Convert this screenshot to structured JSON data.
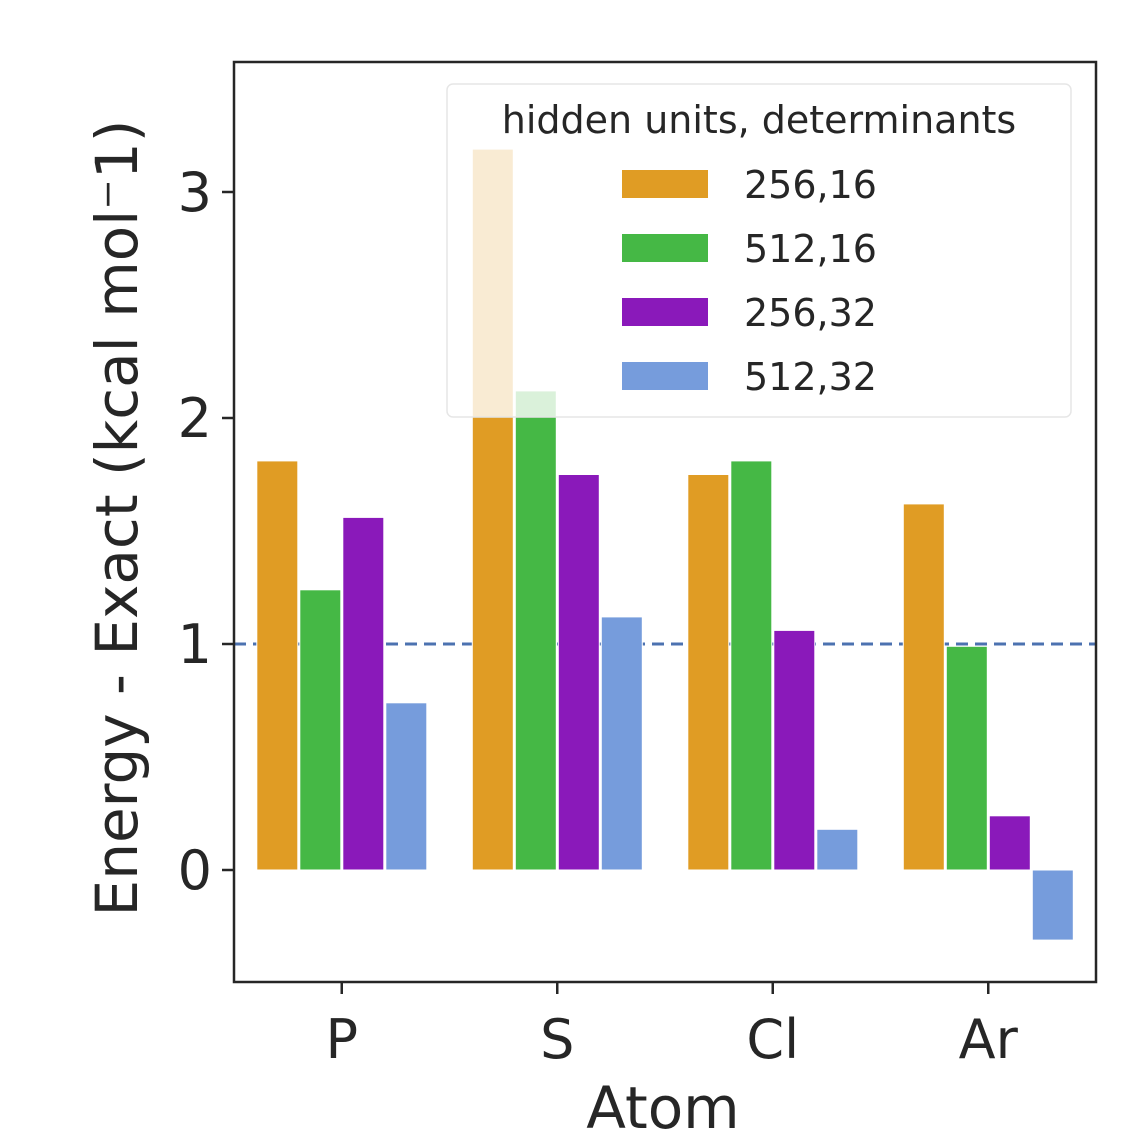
{
  "chart_data": {
    "type": "bar",
    "title": "",
    "xlabel": "Atom",
    "ylabel": "Energy - Exact (kcal mol⁻1)",
    "categories": [
      "P",
      "S",
      "Cl",
      "Ar"
    ],
    "ylim": [
      -0.5,
      3.55
    ],
    "yticks": [
      0,
      1,
      2,
      3
    ],
    "reference_line": {
      "y": 1,
      "style": "dashed",
      "color": "#4C72B0"
    },
    "legend": {
      "title": "hidden units, determinants",
      "position": "top-right"
    },
    "series": [
      {
        "name": "256,16",
        "color": "#E09C24",
        "values": [
          1.81,
          3.19,
          1.75,
          1.62
        ]
      },
      {
        "name": "512,16",
        "color": "#45B845",
        "values": [
          1.24,
          2.12,
          1.81,
          0.99
        ]
      },
      {
        "name": "256,32",
        "color": "#8A19BA",
        "values": [
          1.56,
          1.75,
          1.06,
          0.24
        ]
      },
      {
        "name": "512,32",
        "color": "#769CDC",
        "values": [
          0.74,
          1.12,
          0.18,
          -0.31
        ]
      }
    ]
  }
}
